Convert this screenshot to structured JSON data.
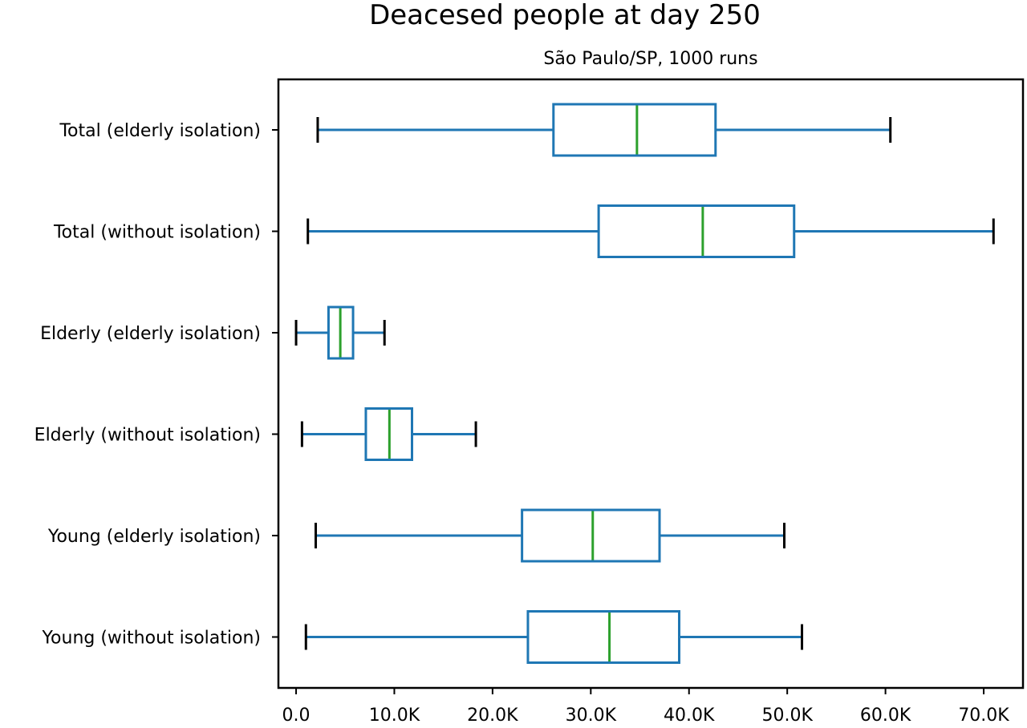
{
  "chart_data": {
    "type": "boxplot",
    "orientation": "horizontal",
    "title": "Deacesed people at day 250",
    "subtitle": "São Paulo/SP, 1000 runs",
    "xlim": [
      -1800,
      74000
    ],
    "xticks": [
      0,
      10000,
      20000,
      30000,
      40000,
      50000,
      60000,
      70000
    ],
    "xtick_labels": [
      "0.0",
      "10.0K",
      "20.0K",
      "30.0K",
      "40.0K",
      "50.0K",
      "60.0K",
      "70.0K"
    ],
    "grid": false,
    "colors": {
      "box": "#1f77b4",
      "median": "#2ca02c",
      "cap": "#000000"
    },
    "categories": [
      "Total (elderly isolation)",
      "Total (without isolation)",
      "Elderly (elderly isolation)",
      "Elderly (without isolation)",
      "Young (elderly isolation)",
      "Young (without isolation)"
    ],
    "boxes": [
      {
        "label": "Total (elderly isolation)",
        "whislo": 2200,
        "q1": 26200,
        "med": 34700,
        "q3": 42700,
        "whishi": 60500
      },
      {
        "label": "Total (without isolation)",
        "whislo": 1200,
        "q1": 30800,
        "med": 41400,
        "q3": 50700,
        "whishi": 71000
      },
      {
        "label": "Elderly (elderly isolation)",
        "whislo": 0,
        "q1": 3300,
        "med": 4500,
        "q3": 5800,
        "whishi": 9000
      },
      {
        "label": "Elderly (without isolation)",
        "whislo": 600,
        "q1": 7100,
        "med": 9500,
        "q3": 11800,
        "whishi": 18300
      },
      {
        "label": "Young (elderly isolation)",
        "whislo": 2000,
        "q1": 23000,
        "med": 30200,
        "q3": 37000,
        "whishi": 49700
      },
      {
        "label": "Young (without isolation)",
        "whislo": 1000,
        "q1": 23600,
        "med": 31900,
        "q3": 39000,
        "whishi": 51500
      }
    ]
  }
}
